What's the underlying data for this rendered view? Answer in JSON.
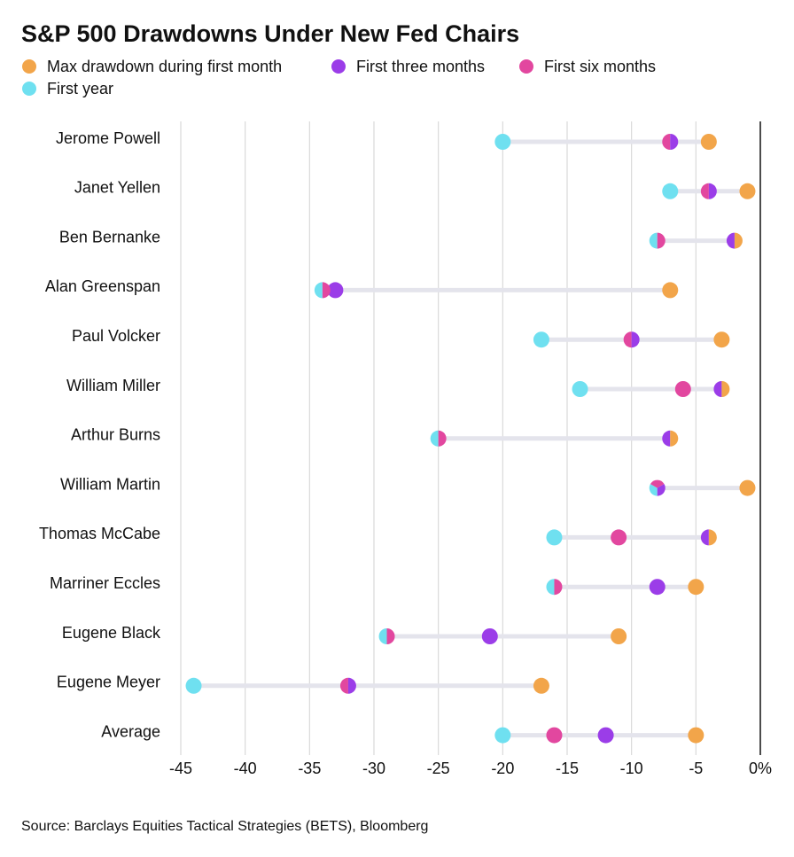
{
  "chart_data": {
    "type": "dot",
    "title": "S&P 500 Drawdowns Under New Fed Chairs",
    "source": "Source: Barclays Equities Tactical Strategies (BETS), Bloomberg",
    "categories": [
      "Jerome Powell",
      "Janet Yellen",
      "Ben Bernanke",
      "Alan Greenspan",
      "Paul Volcker",
      "William Miller",
      "Arthur Burns",
      "William Martin",
      "Thomas McCabe",
      "Marriner Eccles",
      "Eugene Black",
      "Eugene Meyer",
      "Average"
    ],
    "series": [
      {
        "name": "Max drawdown during first month",
        "color": "#f2a54a",
        "values": [
          -4,
          -1,
          -2,
          -7,
          -3,
          -3,
          -7,
          -1,
          -4,
          -5,
          -11,
          -17,
          -5
        ]
      },
      {
        "name": "First three months",
        "color": "#9b3de8",
        "values": [
          -7,
          -4,
          -2,
          -33,
          -10,
          -3,
          -7,
          -8,
          -4,
          -8,
          -21,
          -32,
          -12
        ]
      },
      {
        "name": "First six months",
        "color": "#e2479f",
        "values": [
          -7,
          -4,
          -8,
          -34,
          -10,
          -6,
          -25,
          -8,
          -11,
          -16,
          -29,
          -32,
          -16
        ]
      },
      {
        "name": "First year",
        "color": "#6fe0f0",
        "values": [
          -20,
          -7,
          -8,
          -34,
          -17,
          -14,
          -25,
          -8,
          -16,
          -16,
          -29,
          -44,
          -20
        ]
      }
    ],
    "xlim": [
      -45,
      0
    ],
    "xticks": [
      -45,
      -40,
      -35,
      -30,
      -25,
      -20,
      -15,
      -10,
      -5,
      {
        "value": 0,
        "label": "0%"
      }
    ],
    "grid": true
  }
}
